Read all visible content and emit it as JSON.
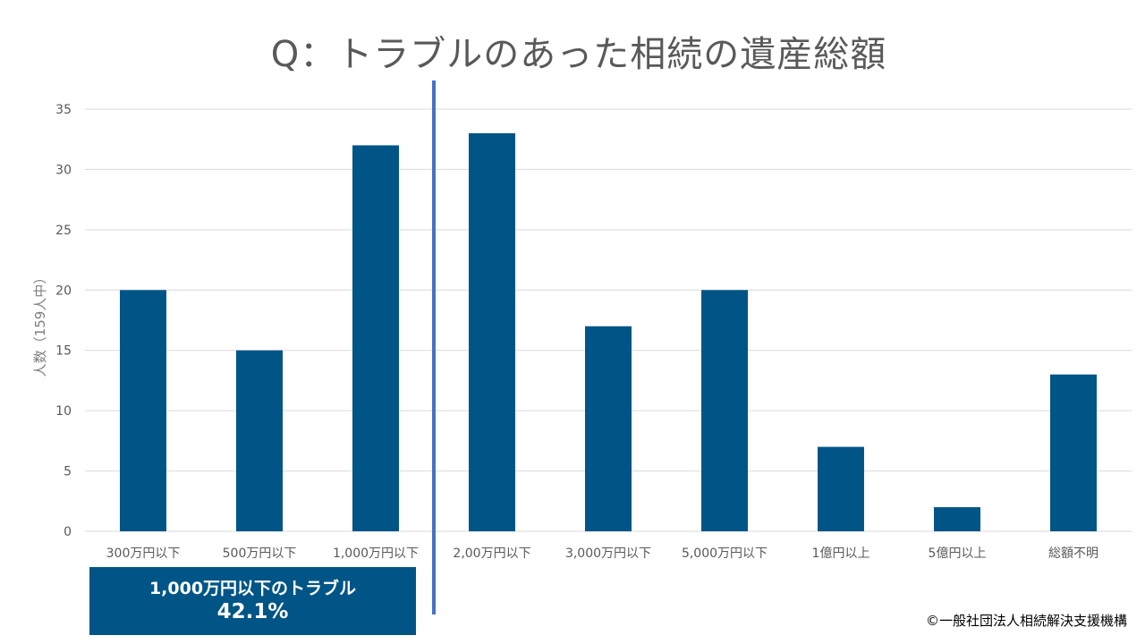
{
  "title": "Q：トラブルのあった相続の遺産総額",
  "callout": {
    "label": "1,000万円以下のトラブル",
    "value": "42.1%"
  },
  "copyright": "©一般社団法人相続解決支援機構",
  "chart_data": {
    "type": "bar",
    "title": "Q：トラブルのあった相続の遺産総額",
    "xlabel": "",
    "ylabel": "人数（159人中）",
    "categories": [
      "300万円以下",
      "500万円以下",
      "1,000万円以下",
      "2,00万円以下",
      "3,000万円以下",
      "5,000万円以下",
      "1億円以上",
      "5億円以上",
      "総額不明"
    ],
    "values": [
      20,
      15,
      32,
      33,
      17,
      20,
      7,
      2,
      13
    ],
    "ylim": [
      0,
      35
    ],
    "yticks": [
      0,
      5,
      10,
      15,
      20,
      25,
      30,
      35
    ],
    "grid": true,
    "colors": {
      "bar": "#005587",
      "divider": "#4472c4",
      "callout": "#005587"
    }
  }
}
